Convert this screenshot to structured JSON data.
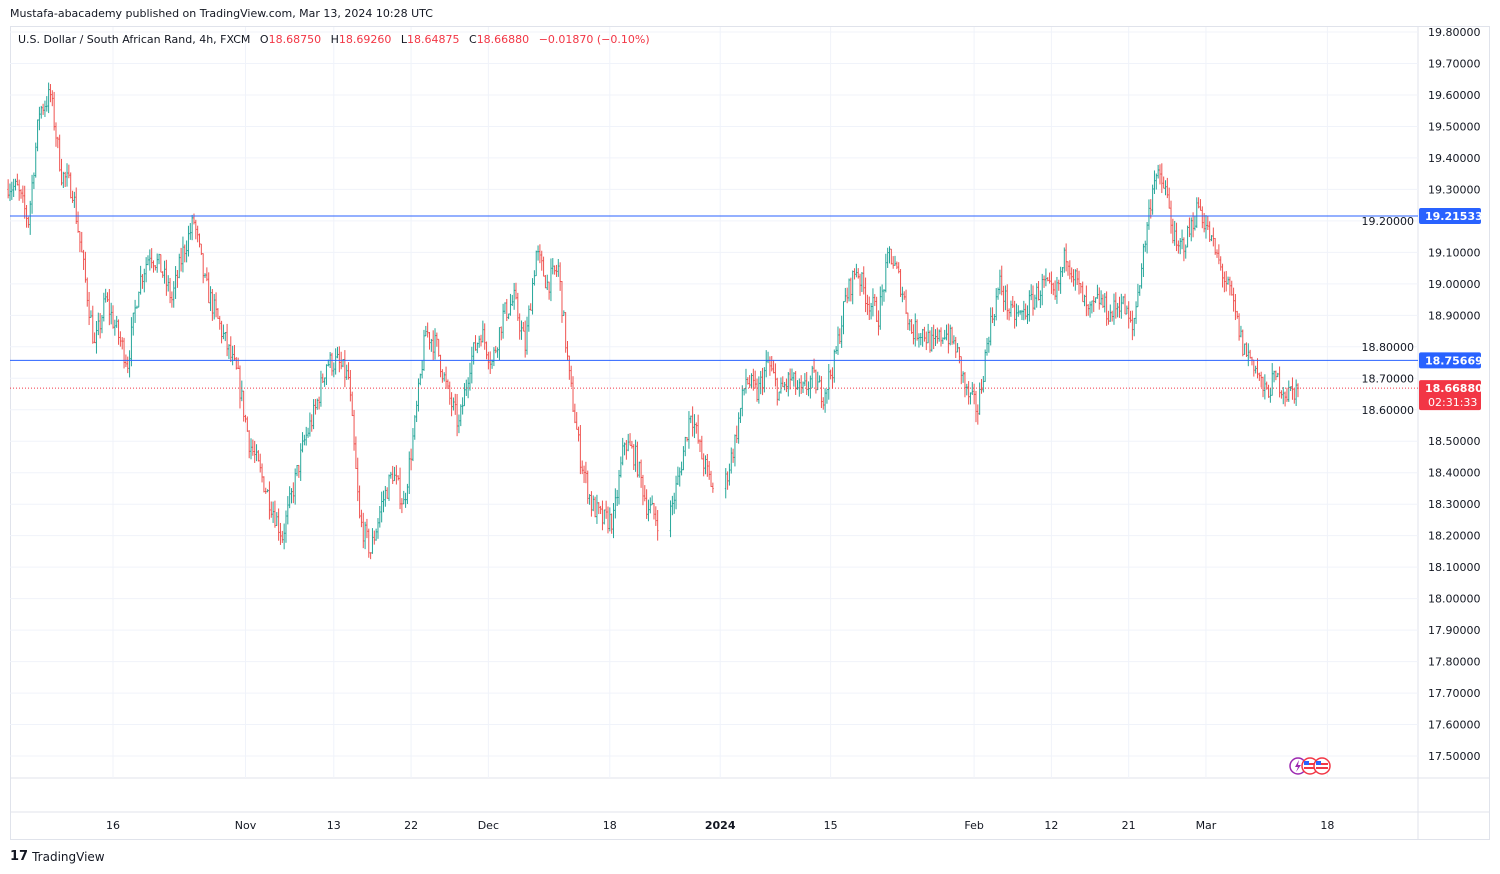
{
  "publisher_line": "Mustafa-abacademy published on TradingView.com, Mar 13, 2024 10:28 UTC",
  "legend": {
    "symbol": "U.S. Dollar / South African Rand, 4h, FXCM",
    "open_label": "O",
    "open": "18.68750",
    "high_label": "H",
    "high": "18.69260",
    "low_label": "L",
    "low": "18.64875",
    "close_label": "C",
    "close": "18.66880",
    "change": "−0.01870 (−0.10%)"
  },
  "footer": {
    "brand": "TradingView",
    "logo_text": "17"
  },
  "colors": {
    "up": "#26a69a",
    "down": "#ef5350",
    "hline": "#2962ff",
    "last_price": "#f23645",
    "grid": "#f0f3fa"
  },
  "chart_data": {
    "type": "candlestick",
    "symbol": "USDZAR",
    "timeframe": "4h",
    "ylim": [
      17.45,
      19.82
    ],
    "y_ticks": [
      "19.80000",
      "19.70000",
      "19.60000",
      "19.50000",
      "19.40000",
      "19.30000",
      "19.20000",
      "19.10000",
      "19.00000",
      "18.90000",
      "18.80000",
      "18.70000",
      "18.60000",
      "18.50000",
      "18.40000",
      "18.30000",
      "18.20000",
      "18.10000",
      "18.00000",
      "17.90000",
      "17.80000",
      "17.70000",
      "17.60000",
      "17.50000"
    ],
    "x_ticks": [
      {
        "label": "16",
        "date": "2023-10-16"
      },
      {
        "label": "Nov",
        "date": "2023-11-01"
      },
      {
        "label": "13",
        "date": "2023-11-13"
      },
      {
        "label": "22",
        "date": "2023-11-22"
      },
      {
        "label": "Dec",
        "date": "2023-12-01"
      },
      {
        "label": "18",
        "date": "2023-12-18"
      },
      {
        "label": "2024",
        "date": "2024-01-01"
      },
      {
        "label": "15",
        "date": "2024-01-15"
      },
      {
        "label": "Feb",
        "date": "2024-02-01"
      },
      {
        "label": "12",
        "date": "2024-02-12"
      },
      {
        "label": "21",
        "date": "2024-02-21"
      },
      {
        "label": "Mar",
        "date": "2024-03-01"
      },
      {
        "label": "18",
        "date": "2024-03-18"
      }
    ],
    "horizontal_lines": [
      {
        "price": 19.21533,
        "label": "19.21533"
      },
      {
        "price": 18.75669,
        "label": "18.75669"
      }
    ],
    "last_price": {
      "price": 18.6688,
      "label": "18.66880",
      "countdown": "02:31:33"
    },
    "daily_closes": [
      [
        "2023-10-03",
        19.3
      ],
      [
        "2023-10-04",
        19.2
      ],
      [
        "2023-10-05",
        19.55
      ],
      [
        "2023-10-06",
        19.6
      ],
      [
        "2023-10-09",
        19.35
      ],
      [
        "2023-10-10",
        19.3
      ],
      [
        "2023-10-11",
        19.05
      ],
      [
        "2023-10-12",
        18.8
      ],
      [
        "2023-10-13",
        18.95
      ],
      [
        "2023-10-16",
        18.85
      ],
      [
        "2023-10-17",
        18.75
      ],
      [
        "2023-10-18",
        19.0
      ],
      [
        "2023-10-19",
        19.1
      ],
      [
        "2023-10-20",
        19.05
      ],
      [
        "2023-10-23",
        18.95
      ],
      [
        "2023-10-24",
        19.1
      ],
      [
        "2023-10-25",
        19.2
      ],
      [
        "2023-10-26",
        19.0
      ],
      [
        "2023-10-27",
        18.9
      ],
      [
        "2023-10-30",
        18.8
      ],
      [
        "2023-10-31",
        18.7
      ],
      [
        "2023-11-01",
        18.5
      ],
      [
        "2023-11-02",
        18.4
      ],
      [
        "2023-11-03",
        18.3
      ],
      [
        "2023-11-06",
        18.2
      ],
      [
        "2023-11-07",
        18.35
      ],
      [
        "2023-11-08",
        18.5
      ],
      [
        "2023-11-09",
        18.6
      ],
      [
        "2023-11-10",
        18.75
      ],
      [
        "2023-11-13",
        18.75
      ],
      [
        "2023-11-14",
        18.7
      ],
      [
        "2023-11-15",
        18.25
      ],
      [
        "2023-11-16",
        18.15
      ],
      [
        "2023-11-17",
        18.3
      ],
      [
        "2023-11-20",
        18.4
      ],
      [
        "2023-11-21",
        18.3
      ],
      [
        "2023-11-22",
        18.55
      ],
      [
        "2023-11-23",
        18.85
      ],
      [
        "2023-11-24",
        18.8
      ],
      [
        "2023-11-27",
        18.65
      ],
      [
        "2023-11-28",
        18.55
      ],
      [
        "2023-11-29",
        18.75
      ],
      [
        "2023-11-30",
        18.85
      ],
      [
        "2023-12-01",
        18.75
      ],
      [
        "2023-12-04",
        18.9
      ],
      [
        "2023-12-05",
        18.95
      ],
      [
        "2023-12-06",
        18.8
      ],
      [
        "2023-12-07",
        19.1
      ],
      [
        "2023-12-08",
        19.0
      ],
      [
        "2023-12-11",
        19.05
      ],
      [
        "2023-12-12",
        18.7
      ],
      [
        "2023-12-13",
        18.45
      ],
      [
        "2023-12-14",
        18.3
      ],
      [
        "2023-12-15",
        18.25
      ],
      [
        "2023-12-18",
        18.25
      ],
      [
        "2023-12-19",
        18.5
      ],
      [
        "2023-12-20",
        18.45
      ],
      [
        "2023-12-21",
        18.3
      ],
      [
        "2023-12-22",
        18.25
      ],
      [
        "2023-12-26",
        18.4
      ],
      [
        "2023-12-27",
        18.6
      ],
      [
        "2023-12-28",
        18.45
      ],
      [
        "2023-12-29",
        18.35
      ],
      [
        "2024-01-02",
        18.5
      ],
      [
        "2024-01-03",
        18.7
      ],
      [
        "2024-01-04",
        18.65
      ],
      [
        "2024-01-05",
        18.75
      ],
      [
        "2024-01-08",
        18.65
      ],
      [
        "2024-01-09",
        18.7
      ],
      [
        "2024-01-10",
        18.65
      ],
      [
        "2024-01-11",
        18.7
      ],
      [
        "2024-01-12",
        18.65
      ],
      [
        "2024-01-15",
        18.75
      ],
      [
        "2024-01-16",
        18.95
      ],
      [
        "2024-01-17",
        19.05
      ],
      [
        "2024-01-18",
        18.95
      ],
      [
        "2024-01-19",
        18.9
      ],
      [
        "2024-01-22",
        19.1
      ],
      [
        "2024-01-23",
        19.0
      ],
      [
        "2024-01-24",
        18.85
      ],
      [
        "2024-01-25",
        18.85
      ],
      [
        "2024-01-26",
        18.8
      ],
      [
        "2024-01-29",
        18.85
      ],
      [
        "2024-01-30",
        18.8
      ],
      [
        "2024-01-31",
        18.65
      ],
      [
        "2024-02-01",
        18.6
      ],
      [
        "2024-02-02",
        18.85
      ],
      [
        "2024-02-05",
        19.0
      ],
      [
        "2024-02-06",
        18.9
      ],
      [
        "2024-02-07",
        18.9
      ],
      [
        "2024-02-08",
        18.95
      ],
      [
        "2024-02-09",
        19.0
      ],
      [
        "2024-02-12",
        18.95
      ],
      [
        "2024-02-13",
        19.1
      ],
      [
        "2024-02-14",
        19.0
      ],
      [
        "2024-02-15",
        18.9
      ],
      [
        "2024-02-16",
        18.95
      ],
      [
        "2024-02-19",
        18.9
      ],
      [
        "2024-02-20",
        18.95
      ],
      [
        "2024-02-21",
        18.85
      ],
      [
        "2024-02-22",
        19.1
      ],
      [
        "2024-02-23",
        19.35
      ],
      [
        "2024-02-26",
        19.3
      ],
      [
        "2024-02-27",
        19.1
      ],
      [
        "2024-02-28",
        19.15
      ],
      [
        "2024-02-29",
        19.25
      ],
      [
        "2024-03-01",
        19.15
      ],
      [
        "2024-03-04",
        19.05
      ],
      [
        "2024-03-05",
        18.95
      ],
      [
        "2024-03-06",
        18.8
      ],
      [
        "2024-03-07",
        18.75
      ],
      [
        "2024-03-08",
        18.65
      ],
      [
        "2024-03-11",
        18.7
      ],
      [
        "2024-03-12",
        18.65
      ],
      [
        "2024-03-13",
        18.6688
      ]
    ],
    "event_icons": [
      "lightning-icon",
      "us-flag-icon",
      "us-flag-icon"
    ]
  }
}
